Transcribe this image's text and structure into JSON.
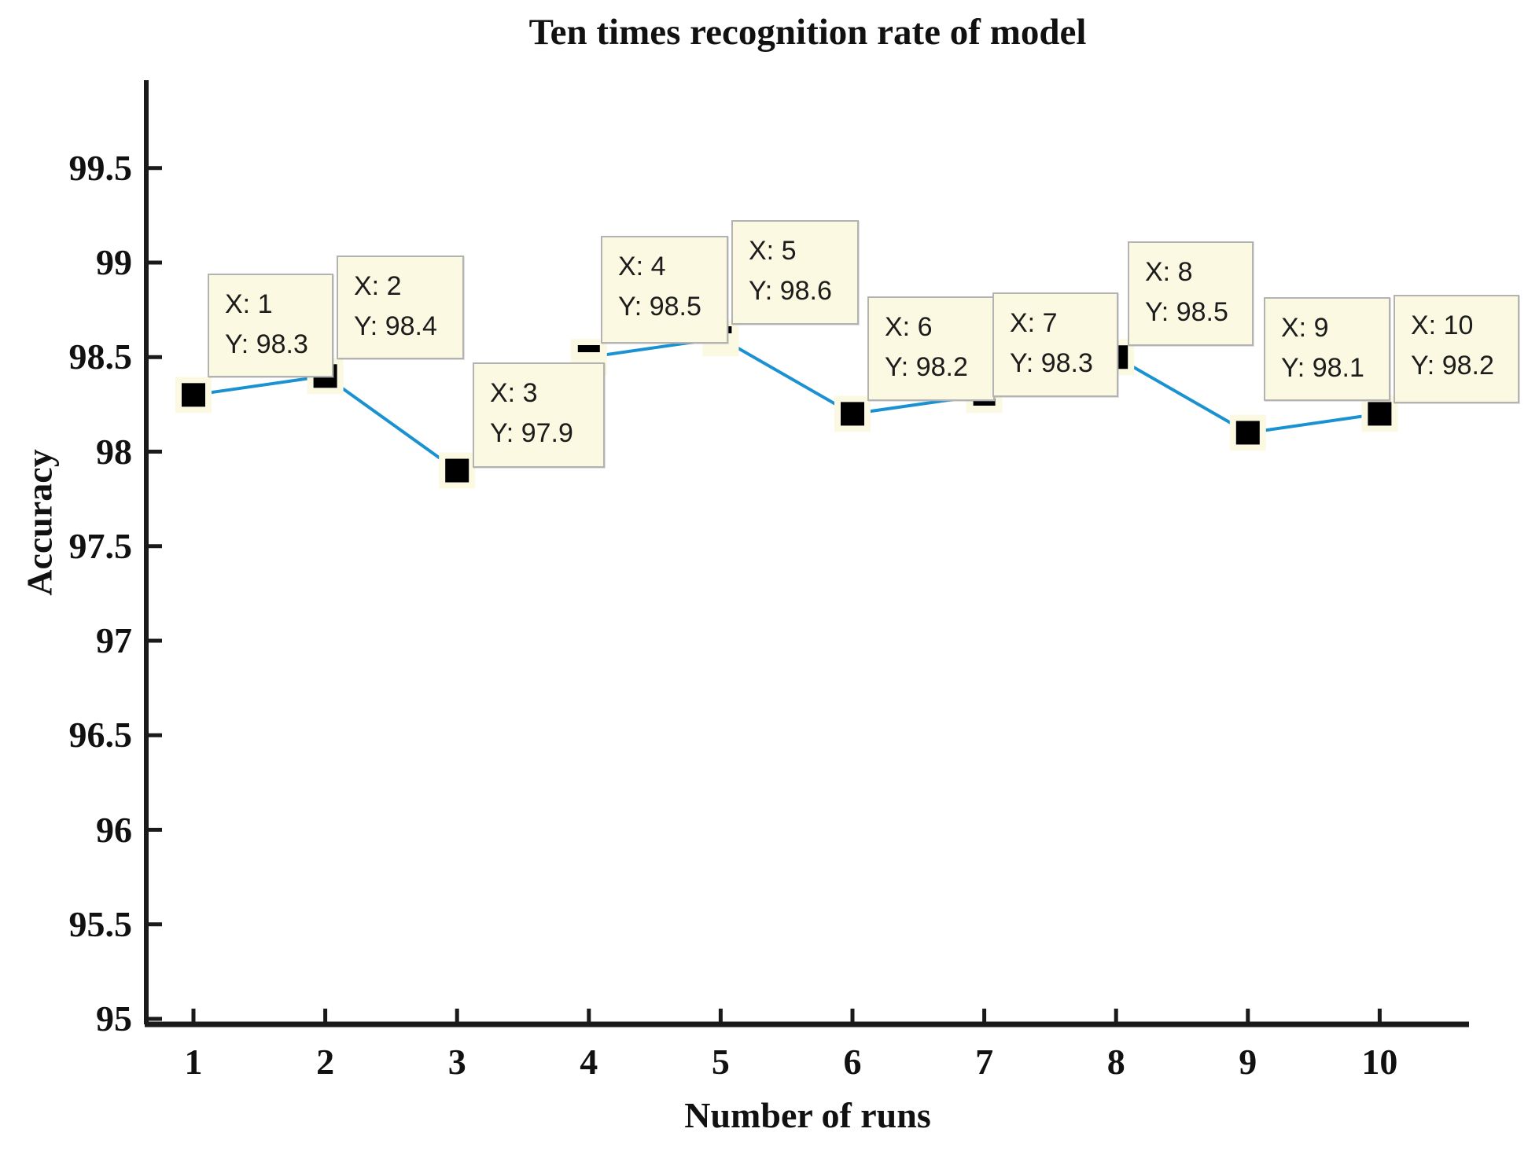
{
  "title": "Ten times recognition rate of model",
  "x_axis": {
    "label": "Number of runs",
    "ticks": [
      "1",
      "2",
      "3",
      "4",
      "5",
      "6",
      "7",
      "8",
      "9",
      "10"
    ]
  },
  "y_axis": {
    "label": "Accuracy",
    "ticks": [
      "95",
      "95.5",
      "96",
      "96.5",
      "97",
      "97.5",
      "98",
      "98.5",
      "99",
      "99.5"
    ]
  },
  "points": [
    {
      "x": 1,
      "y": 98.3,
      "tip_line1": "X: 1",
      "tip_line2": "Y: 98.3"
    },
    {
      "x": 2,
      "y": 98.4,
      "tip_line1": "X: 2",
      "tip_line2": "Y: 98.4"
    },
    {
      "x": 3,
      "y": 97.9,
      "tip_line1": "X: 3",
      "tip_line2": "Y: 97.9"
    },
    {
      "x": 4,
      "y": 98.5,
      "tip_line1": "X: 4",
      "tip_line2": "Y: 98.5"
    },
    {
      "x": 5,
      "y": 98.6,
      "tip_line1": "X: 5",
      "tip_line2": "Y: 98.6"
    },
    {
      "x": 6,
      "y": 98.2,
      "tip_line1": "X: 6",
      "tip_line2": "Y: 98.2"
    },
    {
      "x": 7,
      "y": 98.3,
      "tip_line1": "X: 7",
      "tip_line2": "Y: 98.3"
    },
    {
      "x": 8,
      "y": 98.5,
      "tip_line1": "X: 8",
      "tip_line2": "Y: 98.5"
    },
    {
      "x": 9,
      "y": 98.1,
      "tip_line1": "X: 9",
      "tip_line2": "Y: 98.1"
    },
    {
      "x": 10,
      "y": 98.2,
      "tip_line1": "X: 10",
      "tip_line2": "Y: 98.2"
    }
  ],
  "colors": {
    "line": "#1a91d0",
    "marker": "#000000",
    "tip_background": "#fbf9e1",
    "tip_border": "#b3b3b3",
    "axis": "#1a1a1a"
  },
  "chart_data": {
    "type": "line",
    "title": "Ten times recognition rate of model",
    "xlabel": "Number of runs",
    "ylabel": "Accuracy",
    "x": [
      1,
      2,
      3,
      4,
      5,
      6,
      7,
      8,
      9,
      10
    ],
    "series": [
      {
        "name": "recognition rate",
        "values": [
          98.3,
          98.4,
          97.9,
          98.5,
          98.6,
          98.2,
          98.3,
          98.5,
          98.1,
          98.2
        ]
      }
    ],
    "xlim": [
      0.65,
      10.7
    ],
    "ylim": [
      95,
      100
    ],
    "ytick_step": 0.5,
    "grid": false,
    "legend": "none",
    "marker": "filled-black-square",
    "annotations": [
      "X: 1 / Y: 98.3",
      "X: 2 / Y: 98.4",
      "X: 3 / Y: 97.9",
      "X: 4 / Y: 98.5",
      "X: 5 / Y: 98.6",
      "X: 6 / Y: 98.2",
      "X: 7 / Y: 98.3",
      "X: 8 / Y: 98.5",
      "X: 9 / Y: 98.1",
      "X: 10 / Y: 98.2"
    ]
  }
}
